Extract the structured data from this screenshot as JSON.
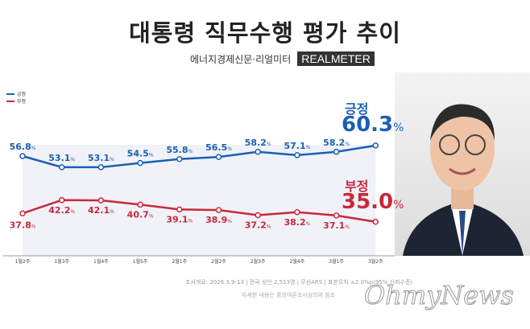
{
  "title": "대통령 직무수행 평가 추이",
  "source": "에너지경제신문·리얼미터",
  "logo_text": "REALMETER",
  "chart_data": {
    "type": "line",
    "categories": [
      "1월2주",
      "1월3주",
      "1월4주",
      "1월5주",
      "2월1주",
      "2월2주",
      "2월3주",
      "2월4주",
      "3월1주",
      "3월2주"
    ],
    "series": [
      {
        "name": "긍정",
        "color": "#1a5fb4",
        "values": [
          56.8,
          53.1,
          53.1,
          54.5,
          55.8,
          56.5,
          58.2,
          57.1,
          58.2,
          60.3
        ]
      },
      {
        "name": "부정",
        "color": "#c8283a",
        "values": [
          37.8,
          42.2,
          42.1,
          40.7,
          39.1,
          38.9,
          37.2,
          38.2,
          37.1,
          35.0
        ]
      }
    ],
    "unit": "%",
    "legend": "top-left",
    "latest": {
      "positive_label": "긍정",
      "positive_value": "60.3",
      "negative_label": "부정",
      "negative_value": "35.0"
    }
  },
  "footnote": "조사개요: 2026.3.9-13 | 전국 성인 2,513명 | 무선ARS | 표본오차 ±2.0%p(95% 신뢰수준)",
  "footnote2": "자세한 내용은 중앙여론조사심의위 참조",
  "watermark": "OhmyNews"
}
